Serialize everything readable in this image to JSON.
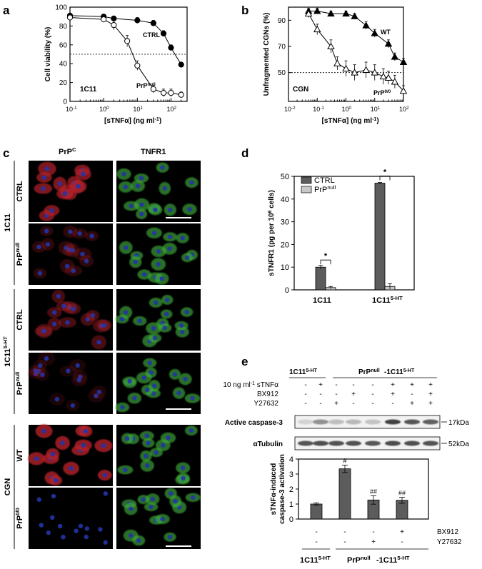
{
  "panel_letters": {
    "a": "a",
    "b": "b",
    "c": "c",
    "d": "d",
    "e": "e"
  },
  "colors": {
    "micro_red": "#b3202a",
    "micro_green": "#3fae3c",
    "micro_blue": "#2434a8",
    "bar_dark": "#5c5c5c",
    "bar_light": "#c8c8c8",
    "scale_bar": "#ffffff"
  },
  "panel_c": {
    "col_headers": [
      "PrP",
      "TNFR1"
    ],
    "col_header_sup": [
      "C",
      ""
    ],
    "groups": [
      {
        "label": "1C11",
        "label_sup": "",
        "rows": [
          {
            "label": "CTRL",
            "sup": ""
          },
          {
            "label": "PrP",
            "sup": "null"
          }
        ]
      },
      {
        "label": "1C11",
        "label_sup": "5-HT",
        "rows": [
          {
            "label": "CTRL",
            "sup": ""
          },
          {
            "label": "PrP",
            "sup": "null"
          }
        ]
      },
      {
        "label": "CGN",
        "label_sup": "",
        "rows": [
          {
            "label": "WT",
            "sup": ""
          },
          {
            "label": "PrP",
            "sup": "0/0"
          }
        ]
      }
    ]
  },
  "panel_e": {
    "top_labels": {
      "a": "1C11",
      "a_sup": "5-HT",
      "b1": "PrP",
      "b1_sup": "null",
      "b2": "-1C11",
      "b2_sup": "5-HT"
    },
    "treatments": [
      {
        "label": "10 ng ml",
        "label_sup": "-1",
        "label_tail": " sTNFα",
        "signs": [
          "-",
          "+",
          "-",
          "-",
          "-",
          "+",
          "+",
          "+"
        ]
      },
      {
        "label": "BX912",
        "label_sup": "",
        "label_tail": "",
        "signs": [
          "-",
          "-",
          "-",
          "+",
          "-",
          "+",
          "-",
          "+"
        ]
      },
      {
        "label": "Y27632",
        "label_sup": "",
        "label_tail": "",
        "signs": [
          "-",
          "-",
          "+",
          "-",
          "-",
          "-",
          "+",
          "+"
        ]
      }
    ],
    "blots": [
      {
        "label": "Active caspase-3",
        "size": "17kDa",
        "intensities": [
          0.12,
          0.45,
          0.22,
          0.25,
          0.2,
          0.85,
          0.75,
          0.7
        ]
      },
      {
        "label": "αTubulin",
        "size": "52kDa",
        "intensities": [
          0.75,
          0.78,
          0.76,
          0.77,
          0.74,
          0.8,
          0.78,
          0.77
        ]
      }
    ],
    "bottom_rows": [
      {
        "label": "BX912",
        "signs": [
          "-",
          "-",
          "-",
          "+"
        ]
      },
      {
        "label": "Y27632",
        "signs": [
          "-",
          "-",
          "+",
          "-"
        ]
      }
    ],
    "bottom_group_labels": {
      "a": "1C11",
      "a_sup": "5-HT",
      "b1": "PrP",
      "b1_sup": "null",
      "b2": "-1C11",
      "b2_sup": "5-HT"
    }
  },
  "chart_data": [
    {
      "panel": "a",
      "type": "line",
      "xscale": "log",
      "xlim": [
        0.1,
        300
      ],
      "ylim": [
        0,
        100
      ],
      "xticks": [
        "10",
        "10",
        "10",
        "10"
      ],
      "xtick_exp": [
        "-1",
        "0",
        "1",
        "2"
      ],
      "yticks": [
        "0",
        "20",
        "40",
        "60",
        "80",
        "100"
      ],
      "xlabel": "[sTNFα] (ng ml",
      "xlabel_sup": "-1",
      "xlabel_tail": ")",
      "ylabel": "Cell viability (%)",
      "annotation": "1C11",
      "reference_line": 50,
      "series": [
        {
          "name": "CTRL",
          "name_sup": "",
          "marker": "filled-circle",
          "x": [
            0.1,
            1,
            2,
            10,
            30,
            60,
            100,
            200
          ],
          "y": [
            91,
            90,
            88,
            86,
            83,
            72,
            57,
            39
          ],
          "err": [
            2,
            2,
            2,
            3,
            3,
            3,
            3,
            2
          ]
        },
        {
          "name": "PrP",
          "name_sup": "null",
          "marker": "open-circle",
          "x": [
            0.1,
            1,
            2,
            5,
            10,
            30,
            60,
            100,
            200
          ],
          "y": [
            89,
            87,
            81,
            64,
            38,
            13,
            9,
            9,
            7
          ],
          "err": [
            2,
            3,
            5,
            6,
            5,
            4,
            4,
            4,
            3
          ]
        }
      ]
    },
    {
      "panel": "b",
      "type": "line",
      "xscale": "log",
      "xlim": [
        0.01,
        100
      ],
      "ylim": [
        28,
        100
      ],
      "xticks": [
        "10",
        "10",
        "10",
        "10",
        "10"
      ],
      "xtick_exp": [
        "-2",
        "-1",
        "0",
        "1",
        "2"
      ],
      "yticks": [
        "50",
        "70",
        "90"
      ],
      "xlabel": "[sTNFα] (ng ml",
      "xlabel_sup": "-1",
      "xlabel_tail": ")",
      "ylabel": "Unfragmented CGNs (%)",
      "annotation": "CGN",
      "reference_line": 50,
      "series": [
        {
          "name": "WT",
          "name_sup": "",
          "marker": "filled-triangle",
          "x": [
            0.05,
            0.1,
            0.3,
            1,
            2,
            5,
            10,
            30,
            50,
            100
          ],
          "y": [
            97,
            97,
            95,
            95,
            93,
            86,
            80,
            72,
            62,
            58
          ],
          "err": [
            2,
            2,
            2,
            2,
            2,
            3,
            3,
            3,
            3,
            3
          ]
        },
        {
          "name": "PrP",
          "name_sup": "0/0",
          "marker": "open-triangle",
          "x": [
            0.05,
            0.1,
            0.3,
            0.5,
            1,
            2,
            5,
            10,
            20,
            30,
            50,
            100
          ],
          "y": [
            95,
            83,
            70,
            57,
            53,
            50,
            52,
            50,
            47,
            46,
            43,
            36
          ],
          "err": [
            3,
            4,
            5,
            5,
            6,
            6,
            6,
            6,
            6,
            5,
            5,
            4
          ]
        }
      ]
    },
    {
      "panel": "d",
      "type": "bar",
      "categories": [
        "1C11",
        "1C11"
      ],
      "category_sup": [
        "",
        "5-HT"
      ],
      "ylim": [
        0,
        50
      ],
      "yticks": [
        "0",
        "10",
        "20",
        "30",
        "40",
        "50"
      ],
      "ylabel": "sTNFR1 (pg per 10",
      "ylabel_sup": "6",
      "ylabel_tail": " cells)",
      "series": [
        {
          "name": "CTRL",
          "name_sup": "",
          "values": [
            10,
            47
          ],
          "err": [
            0.8,
            0.3
          ]
        },
        {
          "name": "PrP",
          "name_sup": "null",
          "values": [
            1,
            1.5
          ],
          "err": [
            0.5,
            1.2
          ]
        }
      ],
      "significance": [
        "*",
        "*"
      ]
    },
    {
      "panel": "e",
      "type": "bar",
      "ylim": [
        0,
        4
      ],
      "yticks": [
        "0",
        "1",
        "2",
        "3",
        "4"
      ],
      "ylabel": "sTNFα-induced",
      "ylabel2": "caspase-3 activation",
      "values": [
        1.0,
        3.35,
        1.27,
        1.25
      ],
      "err": [
        0.08,
        0.25,
        0.28,
        0.2
      ],
      "annotations": [
        "",
        "#",
        "##",
        "##"
      ]
    }
  ]
}
